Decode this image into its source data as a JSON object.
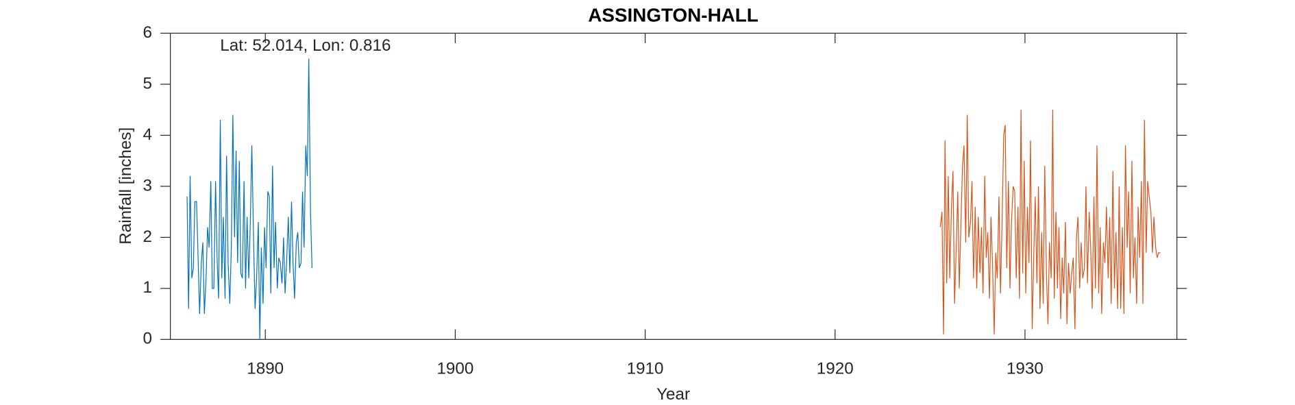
{
  "chart_data": {
    "type": "line",
    "title": "ASSINGTON-HALL",
    "annotation": "Lat: 52.014, Lon: 0.816",
    "xlabel": "Year",
    "ylabel": "Rainfall [inches]",
    "xlim": [
      1885,
      1938
    ],
    "xticks": [
      1890,
      1900,
      1910,
      1920,
      1930
    ],
    "ylim": [
      0,
      6
    ],
    "yticks": [
      0,
      1,
      2,
      3,
      4,
      5,
      6
    ],
    "grid": false,
    "series": [
      {
        "color": "#0072bd",
        "x": [
          1885.88,
          1885.96,
          1886.04,
          1886.13,
          1886.21,
          1886.29,
          1886.38,
          1886.46,
          1886.54,
          1886.63,
          1886.71,
          1886.79,
          1886.88,
          1886.96,
          1887.04,
          1887.13,
          1887.21,
          1887.29,
          1887.38,
          1887.46,
          1887.54,
          1887.63,
          1887.71,
          1887.79,
          1887.88,
          1887.96,
          1888.04,
          1888.13,
          1888.21,
          1888.29,
          1888.38,
          1888.46,
          1888.54,
          1888.63,
          1888.71,
          1888.79,
          1888.88,
          1888.96,
          1889.04,
          1889.13,
          1889.21,
          1889.29,
          1889.38,
          1889.46,
          1889.54,
          1889.63,
          1889.71,
          1889.79,
          1889.88,
          1889.96,
          1890.04,
          1890.13,
          1890.21,
          1890.29,
          1890.38,
          1890.46,
          1890.54,
          1890.63,
          1890.71,
          1890.79,
          1890.88,
          1890.96,
          1891.04,
          1891.13,
          1891.21,
          1891.29,
          1891.38,
          1891.46,
          1891.54,
          1891.63,
          1891.71,
          1891.79,
          1891.88,
          1891.96,
          1892.04,
          1892.13,
          1892.21,
          1892.29,
          1892.38,
          1892.46
        ],
        "values": [
          2.8,
          0.6,
          3.2,
          1.2,
          1.4,
          2.7,
          2.7,
          1.6,
          0.5,
          1.5,
          1.9,
          0.5,
          1.2,
          2.2,
          1.8,
          3.1,
          1.0,
          1.0,
          3.1,
          1.6,
          0.8,
          4.3,
          1.2,
          2.4,
          0.8,
          3.6,
          1.5,
          0.7,
          1.8,
          4.4,
          2.0,
          3.7,
          1.5,
          3.5,
          1.3,
          1.2,
          3.1,
          1.0,
          2.4,
          1.2,
          2.3,
          3.8,
          2.0,
          0.6,
          1.2,
          2.3,
          0.0,
          1.8,
          0.7,
          2.2,
          1.4,
          2.9,
          2.8,
          0.9,
          3.4,
          1.4,
          2.3,
          1.0,
          1.6,
          1.5,
          1.1,
          2.0,
          0.9,
          1.6,
          2.4,
          1.3,
          2.7,
          1.5,
          0.8,
          1.9,
          2.1,
          1.4,
          1.5,
          2.9,
          1.8,
          3.8,
          3.2,
          5.5,
          2.5,
          1.4
        ]
      },
      {
        "color": "#d95319",
        "x": [
          1925.54,
          1925.63,
          1925.71,
          1925.79,
          1925.88,
          1925.96,
          1926.04,
          1926.13,
          1926.21,
          1926.29,
          1926.38,
          1926.46,
          1926.54,
          1926.63,
          1926.71,
          1926.79,
          1926.88,
          1926.96,
          1927.04,
          1927.13,
          1927.21,
          1927.29,
          1927.38,
          1927.46,
          1927.54,
          1927.63,
          1927.71,
          1927.79,
          1927.88,
          1927.96,
          1928.04,
          1928.13,
          1928.21,
          1928.29,
          1928.38,
          1928.46,
          1928.54,
          1928.63,
          1928.71,
          1928.79,
          1928.88,
          1928.96,
          1929.04,
          1929.13,
          1929.21,
          1929.29,
          1929.38,
          1929.46,
          1929.54,
          1929.63,
          1929.71,
          1929.79,
          1929.88,
          1929.96,
          1930.04,
          1930.13,
          1930.21,
          1930.29,
          1930.38,
          1930.46,
          1930.54,
          1930.63,
          1930.71,
          1930.79,
          1930.88,
          1930.96,
          1931.04,
          1931.13,
          1931.21,
          1931.29,
          1931.38,
          1931.46,
          1931.54,
          1931.63,
          1931.71,
          1931.79,
          1931.88,
          1931.96,
          1932.04,
          1932.13,
          1932.21,
          1932.29,
          1932.38,
          1932.46,
          1932.54,
          1932.63,
          1932.71,
          1932.79,
          1932.88,
          1932.96,
          1933.04,
          1933.13,
          1933.21,
          1933.29,
          1933.38,
          1933.46,
          1933.54,
          1933.63,
          1933.71,
          1933.79,
          1933.88,
          1933.96,
          1934.04,
          1934.13,
          1934.21,
          1934.29,
          1934.38,
          1934.46,
          1934.54,
          1934.63,
          1934.71,
          1934.79,
          1934.88,
          1934.96,
          1935.04,
          1935.13,
          1935.21,
          1935.29,
          1935.38,
          1935.46,
          1935.54,
          1935.63,
          1935.71,
          1935.79,
          1935.88,
          1935.96,
          1936.04,
          1936.13,
          1936.21,
          1936.29,
          1936.38,
          1936.46,
          1936.54,
          1936.63,
          1936.71,
          1936.79,
          1936.88,
          1936.96,
          1937.04,
          1937.13
        ],
        "values": [
          2.2,
          2.5,
          0.1,
          3.9,
          1.1,
          3.2,
          1.2,
          2.6,
          3.3,
          0.7,
          1.8,
          2.9,
          1.0,
          2.3,
          3.4,
          3.8,
          1.9,
          4.4,
          2.0,
          2.3,
          3.1,
          1.2,
          2.6,
          1.0,
          2.4,
          1.3,
          2.2,
          0.9,
          3.2,
          1.6,
          2.1,
          0.8,
          2.4,
          1.5,
          0.1,
          1.7,
          1.2,
          2.8,
          0.9,
          2.2,
          4.0,
          4.2,
          1.4,
          3.1,
          1.0,
          2.3,
          3.0,
          2.9,
          1.2,
          2.6,
          0.8,
          4.5,
          1.3,
          3.5,
          0.9,
          2.6,
          1.5,
          3.9,
          0.2,
          1.6,
          2.8,
          1.1,
          3.0,
          0.6,
          2.1,
          0.7,
          3.4,
          1.3,
          0.3,
          1.9,
          1.2,
          4.5,
          0.8,
          2.5,
          1.0,
          2.2,
          0.4,
          1.6,
          0.9,
          2.3,
          0.3,
          1.5,
          0.9,
          1.3,
          1.6,
          0.2,
          2.0,
          2.4,
          1.0,
          1.9,
          1.2,
          1.4,
          3.0,
          1.1,
          2.5,
          1.8,
          0.6,
          2.8,
          1.0,
          3.8,
          0.9,
          2.2,
          0.5,
          1.9,
          1.5,
          2.6,
          1.2,
          2.4,
          0.7,
          3.3,
          1.0,
          2.1,
          0.6,
          3.0,
          0.6,
          2.2,
          0.5,
          3.8,
          1.8,
          2.9,
          0.9,
          3.5,
          1.2,
          2.0,
          0.7,
          2.6,
          1.6,
          3.1,
          0.7,
          4.3,
          1.7,
          3.1,
          2.8,
          2.5,
          1.7,
          2.4,
          1.8,
          1.6,
          1.7,
          1.7
        ]
      }
    ]
  }
}
